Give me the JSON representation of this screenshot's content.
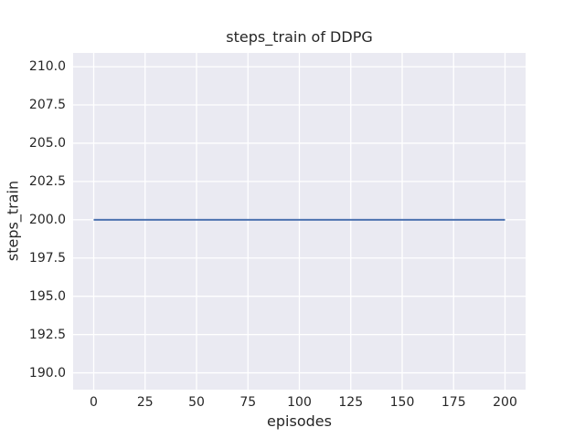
{
  "window": {
    "background_color": "#ffffff"
  },
  "chart_data": {
    "type": "line",
    "title": "steps_train of DDPG",
    "xlabel": "episodes",
    "ylabel": "steps_train",
    "xlim": [
      -10,
      210
    ],
    "ylim": [
      188.9,
      210.9
    ],
    "grid": true,
    "legend": false,
    "xticks": [
      {
        "v": 0,
        "label": "0"
      },
      {
        "v": 25,
        "label": "25"
      },
      {
        "v": 50,
        "label": "50"
      },
      {
        "v": 75,
        "label": "75"
      },
      {
        "v": 100,
        "label": "100"
      },
      {
        "v": 125,
        "label": "125"
      },
      {
        "v": 150,
        "label": "150"
      },
      {
        "v": 175,
        "label": "175"
      },
      {
        "v": 200,
        "label": "200"
      }
    ],
    "yticks": [
      {
        "v": 190.0,
        "label": "190.0"
      },
      {
        "v": 192.5,
        "label": "192.5"
      },
      {
        "v": 195.0,
        "label": "195.0"
      },
      {
        "v": 197.5,
        "label": "197.5"
      },
      {
        "v": 200.0,
        "label": "200.0"
      },
      {
        "v": 202.5,
        "label": "202.5"
      },
      {
        "v": 205.0,
        "label": "205.0"
      },
      {
        "v": 207.5,
        "label": "207.5"
      },
      {
        "v": 210.0,
        "label": "210.0"
      }
    ],
    "series": [
      {
        "name": "steps_train",
        "x": [
          0,
          200
        ],
        "y": [
          200,
          200
        ]
      }
    ],
    "colors": {
      "axes_background": "#eaeaf2",
      "grid": "#ffffff",
      "line": "#4c72b0",
      "text": "#262626",
      "figure_background": "#ffffff"
    },
    "line_width": 2
  }
}
